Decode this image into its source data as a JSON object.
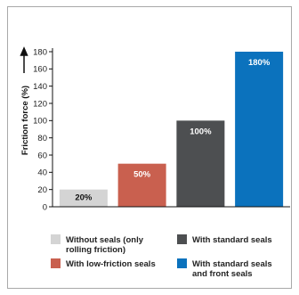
{
  "chart_data": {
    "type": "bar",
    "categories": [
      "Without seals (only rolling friction)",
      "With low-friction seals",
      "With standard seals",
      "With standard seals and front seals"
    ],
    "values": [
      20,
      50,
      100,
      180
    ],
    "data_labels": [
      "20%",
      "50%",
      "100%",
      "180%"
    ],
    "colors": [
      "#d4d4d4",
      "#c9604f",
      "#4d4f51",
      "#0b72bd"
    ],
    "label_colors": [
      "#111111",
      "#ffffff",
      "#ffffff",
      "#ffffff"
    ],
    "ylabel": "Friction force (%)",
    "ylim": [
      0,
      180
    ],
    "yticks": [
      0,
      20,
      40,
      60,
      80,
      100,
      120,
      140,
      160,
      180
    ],
    "grid": false,
    "legend_position": "bottom"
  },
  "legend": [
    {
      "label": "Without seals (only rolling friction)",
      "color": "#d4d4d4"
    },
    {
      "label": "With standard seals",
      "color": "#4d4f51"
    },
    {
      "label": "With low-friction seals",
      "color": "#c9604f"
    },
    {
      "label": "With standard seals and front seals",
      "color": "#0b72bd"
    }
  ]
}
